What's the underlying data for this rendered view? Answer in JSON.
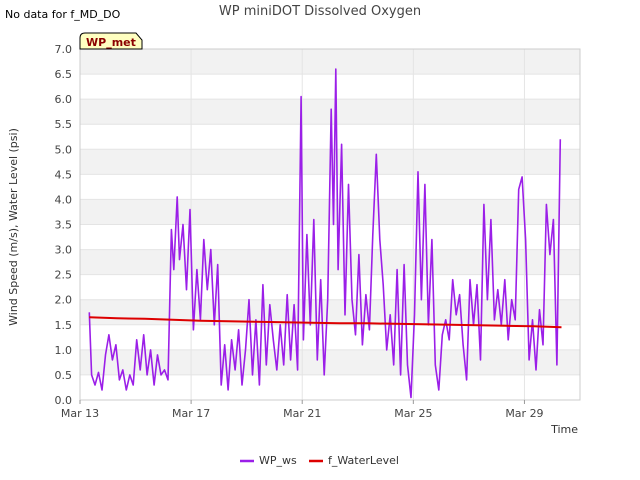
{
  "note": "No data for f_MD_DO",
  "badge": "WP_met",
  "chart_data": {
    "type": "line",
    "title": "WP miniDOT Dissolved Oxygen",
    "xlabel": "Time",
    "ylabel": "Wind Speed (m/s), Water Level (psi)",
    "ylim": [
      0,
      7
    ],
    "yticks": [
      "0.0",
      "0.5",
      "1.0",
      "1.5",
      "2.0",
      "2.5",
      "3.0",
      "3.5",
      "4.0",
      "4.5",
      "5.0",
      "5.5",
      "6.0",
      "6.5",
      "7.0"
    ],
    "xlim": [
      "2024-03-13",
      "2024-03-31"
    ],
    "xticks": [
      {
        "date": "2024-03-13",
        "label": "Mar 13"
      },
      {
        "date": "2024-03-17",
        "label": "Mar 17"
      },
      {
        "date": "2024-03-21",
        "label": "Mar 21"
      },
      {
        "date": "2024-03-25",
        "label": "Mar 25"
      },
      {
        "date": "2024-03-29",
        "label": "Mar 29"
      }
    ],
    "grid": true,
    "legend": "bottom-center",
    "series": [
      {
        "name": "WP_ws",
        "color": "#9b1fe8",
        "points": [
          [
            "2024-03-13T08:00",
            1.75
          ],
          [
            "2024-03-13T10:00",
            0.5
          ],
          [
            "2024-03-13T13:00",
            0.3
          ],
          [
            "2024-03-13T16:00",
            0.55
          ],
          [
            "2024-03-13T19:00",
            0.2
          ],
          [
            "2024-03-13T22:00",
            0.9
          ],
          [
            "2024-03-14T01:00",
            1.3
          ],
          [
            "2024-03-14T04:00",
            0.8
          ],
          [
            "2024-03-14T07:00",
            1.1
          ],
          [
            "2024-03-14T10:00",
            0.4
          ],
          [
            "2024-03-14T13:00",
            0.6
          ],
          [
            "2024-03-14T16:00",
            0.2
          ],
          [
            "2024-03-14T19:00",
            0.5
          ],
          [
            "2024-03-14T22:00",
            0.3
          ],
          [
            "2024-03-15T01:00",
            1.2
          ],
          [
            "2024-03-15T04:00",
            0.6
          ],
          [
            "2024-03-15T07:00",
            1.3
          ],
          [
            "2024-03-15T10:00",
            0.5
          ],
          [
            "2024-03-15T13:00",
            1.0
          ],
          [
            "2024-03-15T16:00",
            0.3
          ],
          [
            "2024-03-15T19:00",
            0.9
          ],
          [
            "2024-03-15T22:00",
            0.5
          ],
          [
            "2024-03-16T01:00",
            0.6
          ],
          [
            "2024-03-16T04:00",
            0.4
          ],
          [
            "2024-03-16T07:00",
            3.4
          ],
          [
            "2024-03-16T09:00",
            2.6
          ],
          [
            "2024-03-16T12:00",
            4.05
          ],
          [
            "2024-03-16T14:00",
            2.8
          ],
          [
            "2024-03-16T17:00",
            3.5
          ],
          [
            "2024-03-16T20:00",
            2.2
          ],
          [
            "2024-03-16T23:00",
            3.8
          ],
          [
            "2024-03-17T02:00",
            1.4
          ],
          [
            "2024-03-17T05:00",
            2.6
          ],
          [
            "2024-03-17T08:00",
            1.6
          ],
          [
            "2024-03-17T11:00",
            3.2
          ],
          [
            "2024-03-17T14:00",
            2.2
          ],
          [
            "2024-03-17T17:00",
            3.0
          ],
          [
            "2024-03-17T20:00",
            1.5
          ],
          [
            "2024-03-17T23:00",
            2.7
          ],
          [
            "2024-03-18T02:00",
            0.3
          ],
          [
            "2024-03-18T05:00",
            1.1
          ],
          [
            "2024-03-18T08:00",
            0.2
          ],
          [
            "2024-03-18T11:00",
            1.2
          ],
          [
            "2024-03-18T14:00",
            0.6
          ],
          [
            "2024-03-18T17:00",
            1.4
          ],
          [
            "2024-03-18T20:00",
            0.3
          ],
          [
            "2024-03-18T23:00",
            1.0
          ],
          [
            "2024-03-19T02:00",
            2.0
          ],
          [
            "2024-03-19T05:00",
            0.5
          ],
          [
            "2024-03-19T08:00",
            1.6
          ],
          [
            "2024-03-19T11:00",
            0.3
          ],
          [
            "2024-03-19T14:00",
            2.3
          ],
          [
            "2024-03-19T17:00",
            0.7
          ],
          [
            "2024-03-19T20:00",
            1.9
          ],
          [
            "2024-03-19T23:00",
            1.2
          ],
          [
            "2024-03-20T02:00",
            0.6
          ],
          [
            "2024-03-20T05:00",
            1.5
          ],
          [
            "2024-03-20T08:00",
            0.7
          ],
          [
            "2024-03-20T11:00",
            2.1
          ],
          [
            "2024-03-20T14:00",
            0.8
          ],
          [
            "2024-03-20T17:00",
            1.9
          ],
          [
            "2024-03-20T20:00",
            0.6
          ],
          [
            "2024-03-20T23:00",
            6.05
          ],
          [
            "2024-03-21T01:00",
            1.2
          ],
          [
            "2024-03-21T04:00",
            3.3
          ],
          [
            "2024-03-21T07:00",
            1.5
          ],
          [
            "2024-03-21T10:00",
            3.6
          ],
          [
            "2024-03-21T13:00",
            0.8
          ],
          [
            "2024-03-21T16:00",
            2.4
          ],
          [
            "2024-03-21T19:00",
            0.5
          ],
          [
            "2024-03-21T22:00",
            2.0
          ],
          [
            "2024-03-22T01:00",
            5.8
          ],
          [
            "2024-03-22T03:00",
            3.5
          ],
          [
            "2024-03-22T05:00",
            6.6
          ],
          [
            "2024-03-22T07:00",
            2.6
          ],
          [
            "2024-03-22T10:00",
            5.1
          ],
          [
            "2024-03-22T13:00",
            1.7
          ],
          [
            "2024-03-22T16:00",
            4.3
          ],
          [
            "2024-03-22T19:00",
            2.0
          ],
          [
            "2024-03-22T22:00",
            1.3
          ],
          [
            "2024-03-23T01:00",
            2.9
          ],
          [
            "2024-03-23T04:00",
            1.1
          ],
          [
            "2024-03-23T07:00",
            2.1
          ],
          [
            "2024-03-23T10:00",
            1.4
          ],
          [
            "2024-03-23T13:00",
            3.3
          ],
          [
            "2024-03-23T16:00",
            4.9
          ],
          [
            "2024-03-23T19:00",
            3.2
          ],
          [
            "2024-03-23T22:00",
            2.3
          ],
          [
            "2024-03-24T01:00",
            1.0
          ],
          [
            "2024-03-24T04:00",
            1.7
          ],
          [
            "2024-03-24T07:00",
            0.7
          ],
          [
            "2024-03-24T10:00",
            2.6
          ],
          [
            "2024-03-24T13:00",
            0.5
          ],
          [
            "2024-03-24T16:00",
            2.7
          ],
          [
            "2024-03-24T19:00",
            0.7
          ],
          [
            "2024-03-24T22:00",
            0.05
          ],
          [
            "2024-03-25T01:00",
            1.7
          ],
          [
            "2024-03-25T04:00",
            4.55
          ],
          [
            "2024-03-25T07:00",
            2.0
          ],
          [
            "2024-03-25T10:00",
            4.3
          ],
          [
            "2024-03-25T13:00",
            1.5
          ],
          [
            "2024-03-25T16:00",
            3.2
          ],
          [
            "2024-03-25T19:00",
            0.7
          ],
          [
            "2024-03-25T22:00",
            0.2
          ],
          [
            "2024-03-26T01:00",
            1.3
          ],
          [
            "2024-03-26T04:00",
            1.6
          ],
          [
            "2024-03-26T07:00",
            1.2
          ],
          [
            "2024-03-26T10:00",
            2.4
          ],
          [
            "2024-03-26T13:00",
            1.7
          ],
          [
            "2024-03-26T16:00",
            2.1
          ],
          [
            "2024-03-26T19:00",
            1.1
          ],
          [
            "2024-03-26T22:00",
            0.4
          ],
          [
            "2024-03-27T01:00",
            2.4
          ],
          [
            "2024-03-27T04:00",
            1.5
          ],
          [
            "2024-03-27T07:00",
            2.3
          ],
          [
            "2024-03-27T10:00",
            0.8
          ],
          [
            "2024-03-27T13:00",
            3.9
          ],
          [
            "2024-03-27T16:00",
            2.0
          ],
          [
            "2024-03-27T19:00",
            3.6
          ],
          [
            "2024-03-27T22:00",
            1.6
          ],
          [
            "2024-03-28T01:00",
            2.2
          ],
          [
            "2024-03-28T04:00",
            1.5
          ],
          [
            "2024-03-28T07:00",
            2.4
          ],
          [
            "2024-03-28T10:00",
            1.2
          ],
          [
            "2024-03-28T13:00",
            2.0
          ],
          [
            "2024-03-28T16:00",
            1.6
          ],
          [
            "2024-03-28T19:00",
            4.2
          ],
          [
            "2024-03-28T22:00",
            4.45
          ],
          [
            "2024-03-29T01:00",
            3.2
          ],
          [
            "2024-03-29T04:00",
            0.8
          ],
          [
            "2024-03-29T07:00",
            1.6
          ],
          [
            "2024-03-29T10:00",
            0.6
          ],
          [
            "2024-03-29T13:00",
            1.8
          ],
          [
            "2024-03-29T16:00",
            1.1
          ],
          [
            "2024-03-29T19:00",
            3.9
          ],
          [
            "2024-03-29T22:00",
            2.9
          ],
          [
            "2024-03-30T01:00",
            3.6
          ],
          [
            "2024-03-30T04:00",
            0.7
          ],
          [
            "2024-03-30T07:00",
            5.2
          ]
        ]
      },
      {
        "name": "f_WaterLevel",
        "color": "#dd0000",
        "points": [
          [
            "2024-03-13T08:00",
            1.65
          ],
          [
            "2024-03-14T08:00",
            1.63
          ],
          [
            "2024-03-15T08:00",
            1.62
          ],
          [
            "2024-03-16T08:00",
            1.6
          ],
          [
            "2024-03-17T08:00",
            1.58
          ],
          [
            "2024-03-18T08:00",
            1.57
          ],
          [
            "2024-03-19T08:00",
            1.56
          ],
          [
            "2024-03-20T08:00",
            1.55
          ],
          [
            "2024-03-21T08:00",
            1.54
          ],
          [
            "2024-03-22T08:00",
            1.53
          ],
          [
            "2024-03-23T08:00",
            1.53
          ],
          [
            "2024-03-24T08:00",
            1.52
          ],
          [
            "2024-03-25T08:00",
            1.51
          ],
          [
            "2024-03-26T08:00",
            1.5
          ],
          [
            "2024-03-27T08:00",
            1.49
          ],
          [
            "2024-03-28T08:00",
            1.48
          ],
          [
            "2024-03-29T08:00",
            1.47
          ],
          [
            "2024-03-30T08:00",
            1.45
          ]
        ]
      }
    ]
  }
}
